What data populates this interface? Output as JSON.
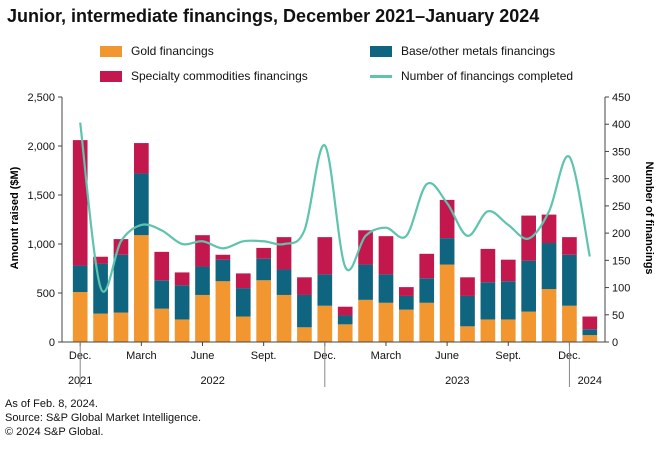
{
  "chart_data": {
    "type": "bar",
    "title": "Junior, intermediate financings, December 2021–January 2024",
    "ylabel": "Amount raised ($M)",
    "y2label": "Number of financings",
    "ylim": [
      0,
      2500
    ],
    "y2lim": [
      0,
      450
    ],
    "yticks": [
      "0",
      "500",
      "1,000",
      "1,500",
      "2,000",
      "2,500"
    ],
    "y2ticks": [
      "0",
      "50",
      "100",
      "150",
      "200",
      "250",
      "300",
      "350",
      "400",
      "450"
    ],
    "x_tick_labels": [
      {
        "index": 0,
        "label": "Dec."
      },
      {
        "index": 3,
        "label": "March"
      },
      {
        "index": 6,
        "label": "June"
      },
      {
        "index": 9,
        "label": "Sept."
      },
      {
        "index": 12,
        "label": "Dec."
      },
      {
        "index": 15,
        "label": "March"
      },
      {
        "index": 18,
        "label": "June"
      },
      {
        "index": 21,
        "label": "Sept."
      },
      {
        "index": 24,
        "label": "Dec."
      }
    ],
    "year_labels": [
      {
        "label": "2021",
        "index": 0
      },
      {
        "label": "2022",
        "index": 6.5
      },
      {
        "label": "2023",
        "index": 18.5
      },
      {
        "label": "2024",
        "index": 25
      }
    ],
    "categories": [
      "Dec 2021",
      "Jan 2022",
      "Feb 2022",
      "Mar 2022",
      "Apr 2022",
      "May 2022",
      "Jun 2022",
      "Jul 2022",
      "Aug 2022",
      "Sep 2022",
      "Oct 2022",
      "Nov 2022",
      "Dec 2022",
      "Jan 2023",
      "Feb 2023",
      "Mar 2023",
      "Apr 2023",
      "May 2023",
      "Jun 2023",
      "Jul 2023",
      "Aug 2023",
      "Sep 2023",
      "Oct 2023",
      "Nov 2023",
      "Dec 2023",
      "Jan 2024"
    ],
    "series": [
      {
        "name": "Gold financings",
        "color": "#f2962f",
        "type": "bar",
        "values": [
          510,
          290,
          300,
          1090,
          340,
          230,
          480,
          620,
          260,
          630,
          480,
          150,
          370,
          180,
          430,
          400,
          330,
          400,
          790,
          160,
          230,
          230,
          310,
          540,
          370,
          70
        ]
      },
      {
        "name": "Base/other metals financings",
        "color": "#0f6580",
        "type": "bar",
        "values": [
          270,
          510,
          590,
          630,
          290,
          350,
          290,
          220,
          290,
          220,
          260,
          330,
          320,
          90,
          360,
          290,
          140,
          250,
          270,
          310,
          380,
          390,
          520,
          470,
          520,
          60
        ]
      },
      {
        "name": "Specialty commodities financings",
        "color": "#c2184d",
        "type": "bar",
        "values": [
          1280,
          70,
          160,
          310,
          290,
          130,
          320,
          50,
          150,
          110,
          330,
          180,
          380,
          90,
          350,
          390,
          90,
          250,
          390,
          190,
          340,
          220,
          460,
          290,
          180,
          130
        ]
      },
      {
        "name": "Number of financings completed",
        "color": "#5ec4ad",
        "type": "line",
        "axis": "right",
        "values": [
          403,
          100,
          185,
          215,
          205,
          180,
          185,
          172,
          185,
          185,
          180,
          205,
          361,
          138,
          195,
          210,
          195,
          290,
          255,
          195,
          240,
          215,
          190,
          240,
          340,
          157
        ]
      }
    ],
    "legend_position": "top",
    "grid": false
  },
  "legend": {
    "gold": "Gold financings",
    "base": "Base/other metals financings",
    "specialty": "Specialty commodities financings",
    "count": "Number of financings completed"
  },
  "footer": {
    "note": "As of Feb. 8, 2024.",
    "source": "Source: S&P Global Market Intelligence.",
    "copyright": "© 2024 S&P Global."
  }
}
